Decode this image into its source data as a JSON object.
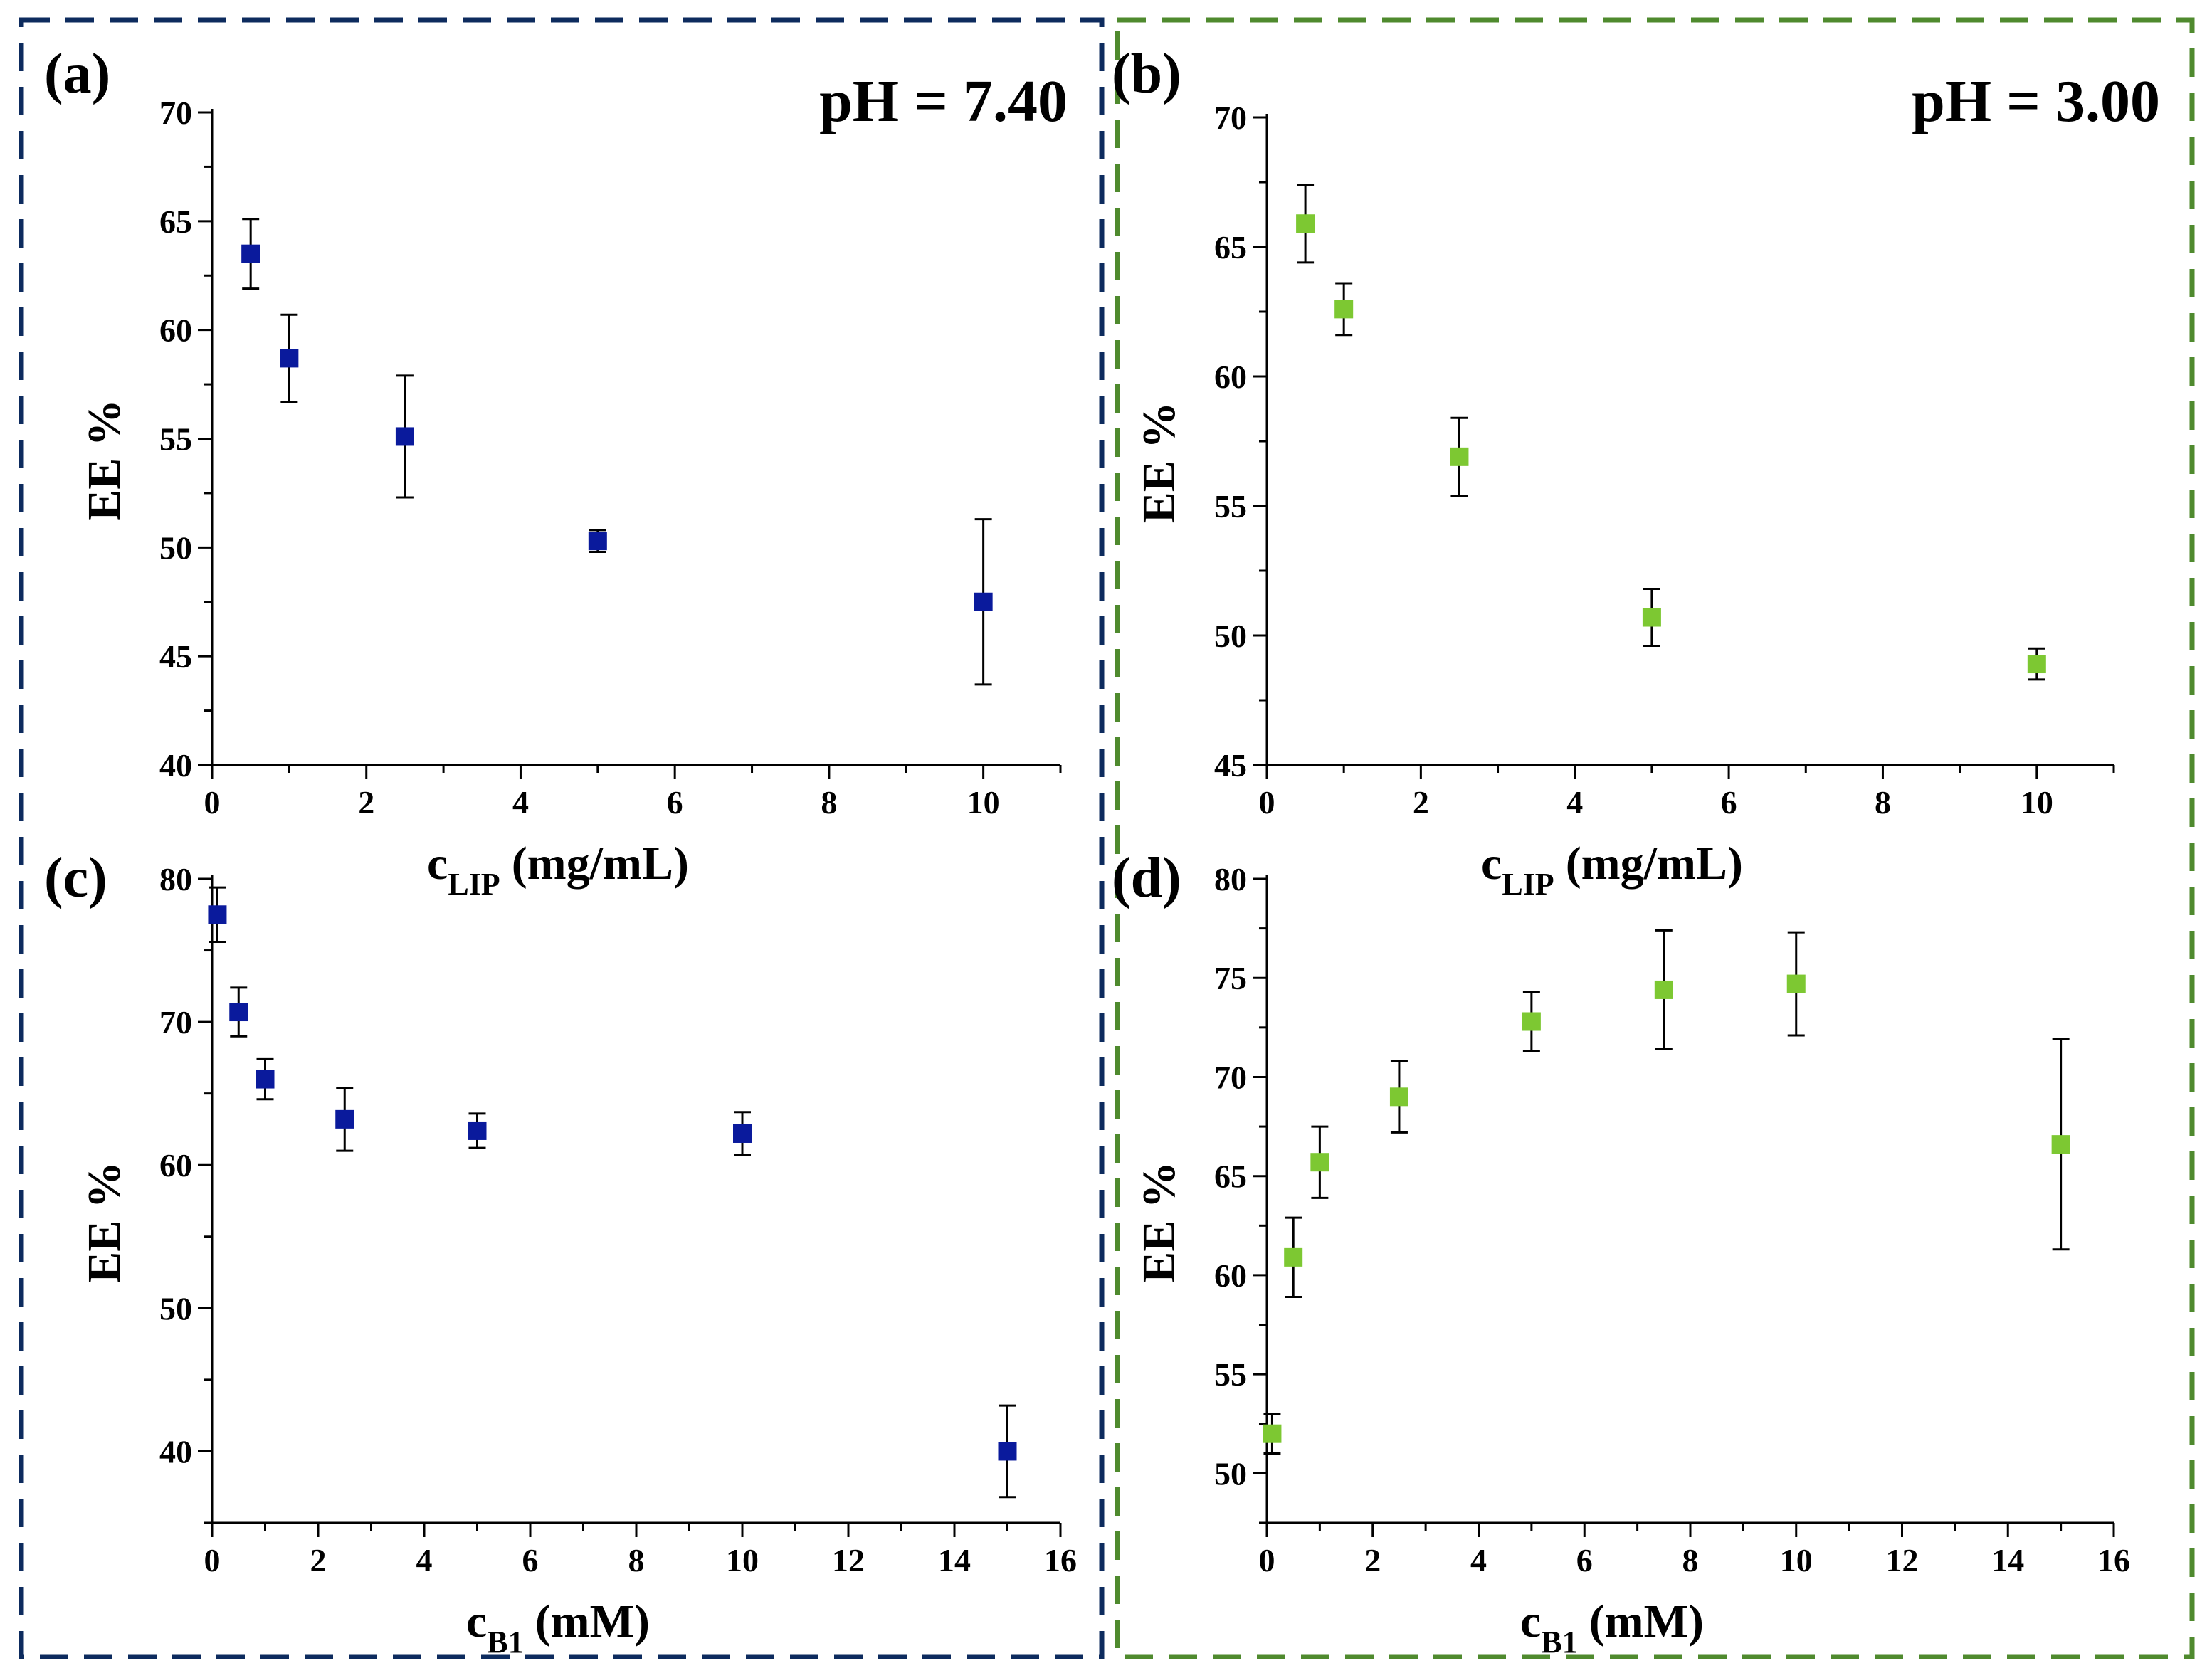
{
  "figure": {
    "colors": {
      "ph74": "#0d2b5e",
      "ph74_text": "#2e5c8a",
      "ph30": "#4f8a2e",
      "ph30_text": "#5a8a2a",
      "marker_blue": "#0a1a9c",
      "marker_green": "#7dc832"
    },
    "panels_left_label": "pH = 7.40",
    "panels_right_label": "pH = 3.00"
  },
  "chart_data": [
    {
      "id": "a",
      "panel_label": "(a)",
      "type": "scatter",
      "xlabel_main": "c",
      "xlabel_sub": "LIP",
      "xlabel_unit": "(mg/mL)",
      "ylabel": "EE %",
      "xlim": [
        0,
        11
      ],
      "ylim": [
        40,
        70
      ],
      "xticks": [
        0,
        2,
        4,
        6,
        8,
        10
      ],
      "yticks": [
        40,
        45,
        50,
        55,
        60,
        65,
        70
      ],
      "xtick_labels": [
        "0",
        "2",
        "4",
        "6",
        "8",
        "10"
      ],
      "ytick_labels": [
        "40",
        "45",
        "50",
        "55",
        "60",
        "65",
        "70"
      ],
      "marker": "blue",
      "x": [
        0.5,
        1,
        2.5,
        5,
        10
      ],
      "y": [
        63.5,
        58.7,
        55.1,
        50.3,
        47.5
      ],
      "yerr": [
        1.6,
        2.0,
        2.8,
        0.5,
        3.8
      ]
    },
    {
      "id": "b",
      "panel_label": "(b)",
      "type": "scatter",
      "xlabel_main": "c",
      "xlabel_sub": "LIP",
      "xlabel_unit": "(mg/mL)",
      "ylabel": "EE %",
      "xlim": [
        0,
        11
      ],
      "ylim": [
        45,
        70
      ],
      "xticks": [
        0,
        2,
        4,
        6,
        8,
        10
      ],
      "yticks": [
        45,
        50,
        55,
        60,
        65,
        70
      ],
      "xtick_labels": [
        "0",
        "2",
        "4",
        "6",
        "8",
        "10"
      ],
      "ytick_labels": [
        "45",
        "50",
        "55",
        "60",
        "65",
        "70"
      ],
      "marker": "green",
      "x": [
        0.5,
        1,
        2.5,
        5,
        10
      ],
      "y": [
        65.9,
        62.6,
        56.9,
        50.7,
        48.9
      ],
      "yerr": [
        1.5,
        1.0,
        1.5,
        1.1,
        0.6
      ]
    },
    {
      "id": "c",
      "panel_label": "(c)",
      "type": "scatter",
      "xlabel_main": "c",
      "xlabel_sub": "B1",
      "xlabel_unit": "(mM)",
      "ylabel": "EE %",
      "xlim": [
        0,
        16
      ],
      "ylim": [
        35,
        80
      ],
      "xticks": [
        0,
        2,
        4,
        6,
        8,
        10,
        12,
        14,
        16
      ],
      "yticks": [
        40,
        50,
        60,
        70,
        80
      ],
      "xtick_labels": [
        "0",
        "2",
        "4",
        "6",
        "8",
        "10",
        "12",
        "14",
        "16"
      ],
      "ytick_labels": [
        "40",
        "50",
        "60",
        "70",
        "80"
      ],
      "marker": "blue",
      "x": [
        0.1,
        0.5,
        1,
        2.5,
        5,
        10,
        15
      ],
      "y": [
        77.5,
        70.7,
        66.0,
        63.2,
        62.4,
        62.2,
        40.0
      ],
      "yerr": [
        1.9,
        1.7,
        1.4,
        2.2,
        1.2,
        1.5,
        3.2
      ]
    },
    {
      "id": "d",
      "panel_label": "(d)",
      "type": "scatter",
      "xlabel_main": "c",
      "xlabel_sub": "B1",
      "xlabel_unit": "(mM)",
      "ylabel": "EE %",
      "xlim": [
        0,
        16
      ],
      "ylim": [
        47.5,
        80
      ],
      "xticks": [
        0,
        2,
        4,
        6,
        8,
        10,
        12,
        14,
        16
      ],
      "yticks": [
        50,
        55,
        60,
        65,
        70,
        75,
        80
      ],
      "xtick_labels": [
        "0",
        "2",
        "4",
        "6",
        "8",
        "10",
        "12",
        "14",
        "16"
      ],
      "ytick_labels": [
        "50",
        "55",
        "60",
        "65",
        "70",
        "75",
        "80"
      ],
      "marker": "green",
      "x": [
        0.1,
        0.5,
        1,
        2.5,
        5,
        7.5,
        10,
        15
      ],
      "y": [
        52.0,
        60.9,
        65.7,
        69.0,
        72.8,
        74.4,
        74.7,
        66.6
      ],
      "yerr": [
        1.0,
        2.0,
        1.8,
        1.8,
        1.5,
        3.0,
        2.6,
        5.3
      ]
    }
  ]
}
